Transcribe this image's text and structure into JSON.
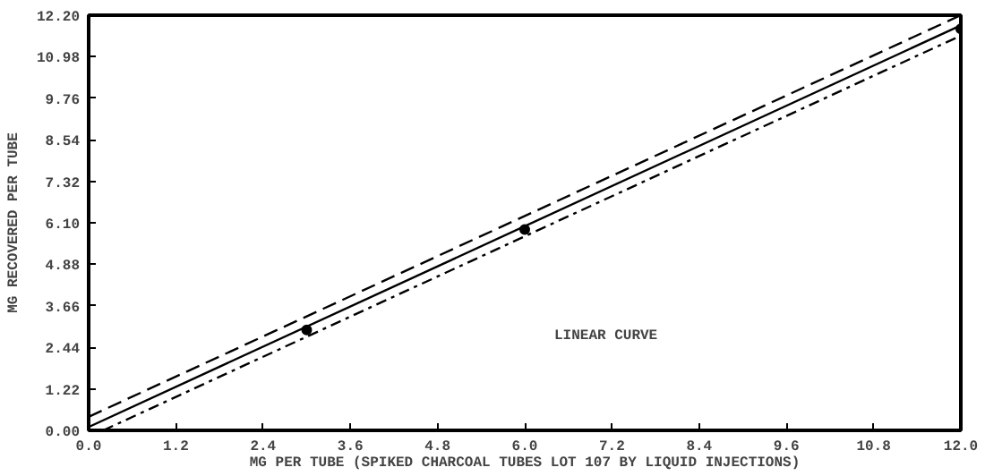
{
  "chart_data": {
    "type": "line",
    "xlabel": "MG PER TUBE (SPIKED CHARCOAL TUBES LOT 107 BY LIQUID INJECTIONS)",
    "ylabel": "MG RECOVERED PER TUBE",
    "xlim": [
      0.0,
      12.0
    ],
    "ylim": [
      0.0,
      12.2
    ],
    "xticks": [
      {
        "value": 0,
        "label": "0.0"
      },
      {
        "value": 1.2,
        "label": "1.2"
      },
      {
        "value": 2.4,
        "label": "2.4"
      },
      {
        "value": 3.6,
        "label": "3.6"
      },
      {
        "value": 4.8,
        "label": "4.8"
      },
      {
        "value": 6,
        "label": "6.0"
      },
      {
        "value": 7.2,
        "label": "7.2"
      },
      {
        "value": 8.4,
        "label": "8.4"
      },
      {
        "value": 9.6,
        "label": "9.6"
      },
      {
        "value": 10.8,
        "label": "10.8"
      },
      {
        "value": 12,
        "label": "12.0"
      }
    ],
    "yticks": [
      {
        "value": 0,
        "label": "0.00"
      },
      {
        "value": 1.22,
        "label": "1.22"
      },
      {
        "value": 2.44,
        "label": "2.44"
      },
      {
        "value": 3.66,
        "label": "3.66"
      },
      {
        "value": 4.88,
        "label": "4.88"
      },
      {
        "value": 6.1,
        "label": "6.10"
      },
      {
        "value": 7.32,
        "label": "7.32"
      },
      {
        "value": 8.54,
        "label": "8.54"
      },
      {
        "value": 9.76,
        "label": "9.76"
      },
      {
        "value": 10.98,
        "label": "10.98"
      },
      {
        "value": 12.2,
        "label": "12.20"
      }
    ],
    "grid": false,
    "series": [
      {
        "color": "#000000",
        "line_style": "solid",
        "x": [
          0.0,
          12.0
        ],
        "values": [
          0.1,
          11.9
        ]
      },
      {
        "color": "#000000",
        "line_style": "dashed",
        "x": [
          0.0,
          12.0
        ],
        "values": [
          0.4,
          12.2
        ]
      },
      {
        "color": "#000000",
        "line_style": "dotted",
        "x": [
          0.2,
          12.0
        ],
        "values": [
          0.0,
          11.6
        ]
      },
      {
        "type": "scatter",
        "marker": "circle",
        "color": "#000000",
        "x": [
          3.0,
          6.0,
          12.0
        ],
        "values": [
          2.95,
          5.9,
          11.8
        ]
      }
    ],
    "annotations": [
      "LINEAR CURVE"
    ]
  }
}
